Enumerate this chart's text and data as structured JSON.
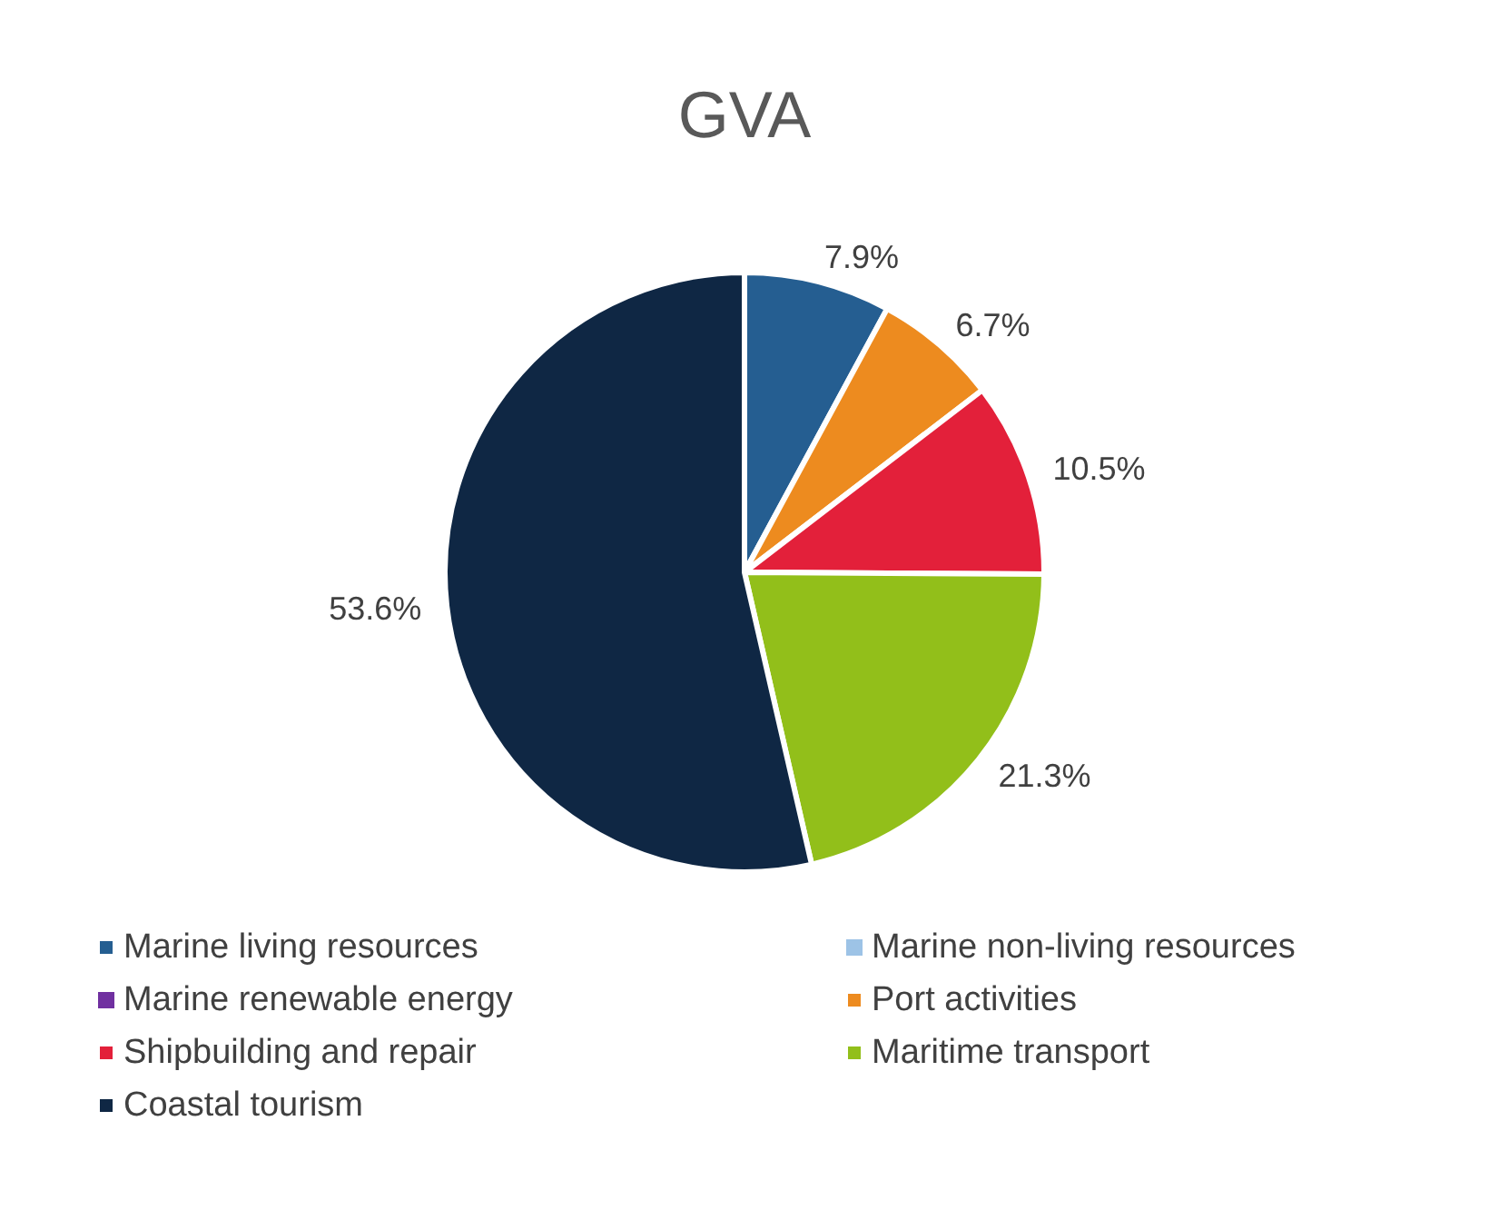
{
  "chart_data": {
    "type": "pie",
    "title": "GVA",
    "categories": [
      "Marine living resources",
      "Marine non-living resources",
      "Marine renewable energy",
      "Port activities",
      "Shipbuilding and repair",
      "Maritime transport",
      "Coastal tourism"
    ],
    "values": [
      7.9,
      0,
      0,
      6.7,
      10.5,
      21.3,
      53.6
    ],
    "value_labels": [
      "7.9%",
      null,
      null,
      "6.7%",
      "10.5%",
      "21.3%",
      "53.6%"
    ],
    "colors": [
      "#255e91",
      "#9dc3e6",
      "#7030a0",
      "#ed8b1f",
      "#e3203a",
      "#92bf1a",
      "#0f2744"
    ],
    "legend": "bottom"
  }
}
